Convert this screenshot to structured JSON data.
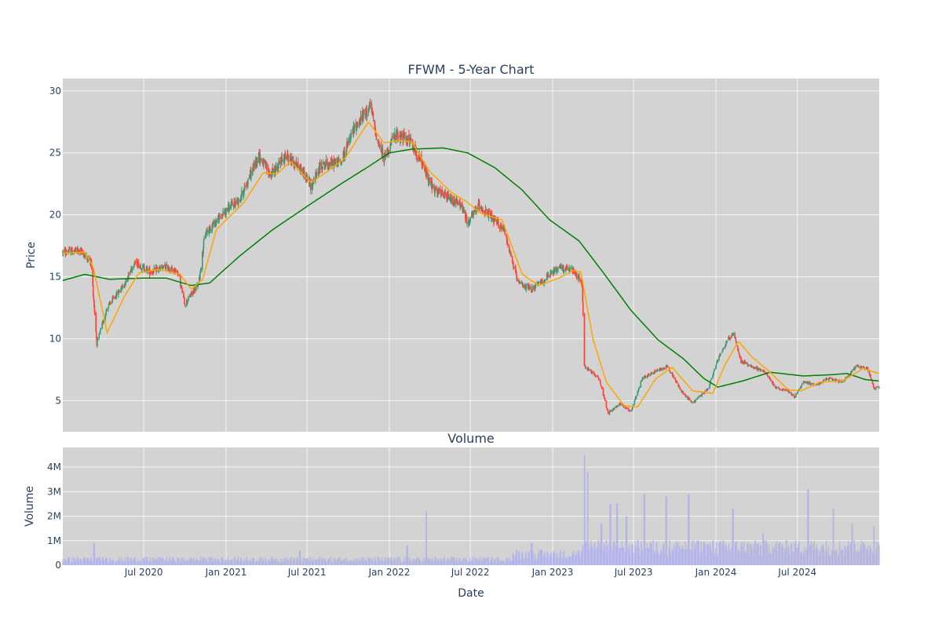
{
  "chart_data": [
    {
      "type": "candlestick",
      "title": "FFWM - 5-Year Chart",
      "xlabel": "",
      "ylabel": "Price",
      "ylim": [
        2.5,
        31
      ],
      "x_ticks": [
        "Jul 2020",
        "Jan 2021",
        "Jul 2021",
        "Jan 2022",
        "Jul 2022",
        "Jan 2023",
        "Jul 2023",
        "Jan 2024",
        "Jul 2024"
      ],
      "y_ticks": [
        5,
        10,
        15,
        20,
        25,
        30
      ],
      "grid": true,
      "background": "#d3d3d3",
      "colors": {
        "up": "#3d9970",
        "down": "#ff4136",
        "ma_short": "#ffa500",
        "ma_long": "#008000"
      },
      "x_range": [
        "2020-01-02",
        "2024-12-31"
      ],
      "price_path": [
        [
          "2020-01-02",
          17.0
        ],
        [
          "2020-02-10",
          17.1
        ],
        [
          "2020-03-05",
          16.2
        ],
        [
          "2020-03-18",
          9.6
        ],
        [
          "2020-04-10",
          12.5
        ],
        [
          "2020-05-20",
          14.5
        ],
        [
          "2020-06-10",
          16.2
        ],
        [
          "2020-07-15",
          15.4
        ],
        [
          "2020-08-20",
          15.8
        ],
        [
          "2020-09-15",
          15.4
        ],
        [
          "2020-10-01",
          12.8
        ],
        [
          "2020-11-01",
          14.5
        ],
        [
          "2020-11-15",
          18.5
        ],
        [
          "2021-01-05",
          20.5
        ],
        [
          "2021-02-01",
          21.3
        ],
        [
          "2021-03-15",
          24.8
        ],
        [
          "2021-04-10",
          23.2
        ],
        [
          "2021-05-15",
          24.8
        ],
        [
          "2021-06-20",
          23.6
        ],
        [
          "2021-07-10",
          22.3
        ],
        [
          "2021-08-01",
          24.0
        ],
        [
          "2021-09-15",
          24.3
        ],
        [
          "2021-10-15",
          27.0
        ],
        [
          "2021-11-20",
          28.8
        ],
        [
          "2021-12-05",
          26.0
        ],
        [
          "2021-12-20",
          24.6
        ],
        [
          "2022-01-15",
          26.5
        ],
        [
          "2022-02-15",
          26.0
        ],
        [
          "2022-03-10",
          24.5
        ],
        [
          "2022-04-10",
          22.0
        ],
        [
          "2022-05-15",
          21.3
        ],
        [
          "2022-06-10",
          20.8
        ],
        [
          "2022-06-25",
          19.3
        ],
        [
          "2022-07-20",
          20.8
        ],
        [
          "2022-08-15",
          19.8
        ],
        [
          "2022-09-15",
          18.8
        ],
        [
          "2022-10-15",
          14.5
        ],
        [
          "2022-11-15",
          14.0
        ],
        [
          "2022-12-15",
          14.8
        ],
        [
          "2023-01-15",
          15.8
        ],
        [
          "2023-02-15",
          15.5
        ],
        [
          "2023-03-08",
          14.5
        ],
        [
          "2023-03-13",
          7.8
        ],
        [
          "2023-04-15",
          6.8
        ],
        [
          "2023-05-05",
          4.0
        ],
        [
          "2023-06-01",
          4.8
        ],
        [
          "2023-06-25",
          4.1
        ],
        [
          "2023-07-20",
          6.8
        ],
        [
          "2023-08-20",
          7.4
        ],
        [
          "2023-09-15",
          7.8
        ],
        [
          "2023-10-15",
          5.8
        ],
        [
          "2023-11-10",
          4.8
        ],
        [
          "2023-12-15",
          6.0
        ],
        [
          "2024-01-05",
          8.3
        ],
        [
          "2024-01-25",
          9.8
        ],
        [
          "2024-02-10",
          10.5
        ],
        [
          "2024-02-25",
          8.2
        ],
        [
          "2024-03-20",
          7.8
        ],
        [
          "2024-04-20",
          7.3
        ],
        [
          "2024-05-15",
          6.0
        ],
        [
          "2024-06-10",
          5.8
        ],
        [
          "2024-06-25",
          5.3
        ],
        [
          "2024-07-15",
          6.5
        ],
        [
          "2024-08-10",
          6.3
        ],
        [
          "2024-09-10",
          6.8
        ],
        [
          "2024-10-10",
          6.5
        ],
        [
          "2024-11-10",
          7.8
        ],
        [
          "2024-12-05",
          7.6
        ],
        [
          "2024-12-20",
          6.0
        ],
        [
          "2024-12-31",
          6.1
        ]
      ],
      "ma_short_path": [
        [
          "2020-01-02",
          16.9
        ],
        [
          "2020-02-20",
          17.0
        ],
        [
          "2020-03-10",
          15.8
        ],
        [
          "2020-04-10",
          10.5
        ],
        [
          "2020-05-20",
          13.5
        ],
        [
          "2020-06-20",
          15.3
        ],
        [
          "2020-08-01",
          15.6
        ],
        [
          "2020-09-20",
          15.2
        ],
        [
          "2020-10-15",
          14.0
        ],
        [
          "2020-11-10",
          14.8
        ],
        [
          "2020-12-10",
          18.8
        ],
        [
          "2021-02-10",
          21.0
        ],
        [
          "2021-03-25",
          23.4
        ],
        [
          "2021-04-25",
          23.3
        ],
        [
          "2021-05-25",
          24.3
        ],
        [
          "2021-07-10",
          22.6
        ],
        [
          "2021-08-15",
          23.5
        ],
        [
          "2021-09-25",
          24.6
        ],
        [
          "2021-11-15",
          27.5
        ],
        [
          "2021-12-20",
          25.8
        ],
        [
          "2022-01-20",
          26.0
        ],
        [
          "2022-02-20",
          25.9
        ],
        [
          "2022-04-01",
          23.5
        ],
        [
          "2022-05-20",
          21.8
        ],
        [
          "2022-06-25",
          21.0
        ],
        [
          "2022-07-25",
          20.1
        ],
        [
          "2022-09-10",
          19.6
        ],
        [
          "2022-10-25",
          15.2
        ],
        [
          "2022-12-01",
          14.3
        ],
        [
          "2023-01-15",
          14.9
        ],
        [
          "2023-02-15",
          15.5
        ],
        [
          "2023-03-05",
          15.4
        ],
        [
          "2023-04-01",
          10.0
        ],
        [
          "2023-05-01",
          6.5
        ],
        [
          "2023-06-10",
          4.6
        ],
        [
          "2023-07-10",
          4.5
        ],
        [
          "2023-08-20",
          6.8
        ],
        [
          "2023-09-25",
          7.7
        ],
        [
          "2023-11-10",
          5.8
        ],
        [
          "2023-12-25",
          5.6
        ],
        [
          "2024-01-20",
          7.8
        ],
        [
          "2024-02-20",
          9.8
        ],
        [
          "2024-03-20",
          8.6
        ],
        [
          "2024-05-01",
          7.3
        ],
        [
          "2024-06-10",
          5.9
        ],
        [
          "2024-07-10",
          5.8
        ],
        [
          "2024-08-20",
          6.5
        ],
        [
          "2024-10-10",
          6.6
        ],
        [
          "2024-11-25",
          7.6
        ],
        [
          "2024-12-31",
          7.2
        ]
      ],
      "ma_long_path": [
        [
          "2020-01-02",
          14.7
        ],
        [
          "2020-02-20",
          15.2
        ],
        [
          "2020-04-15",
          14.8
        ],
        [
          "2020-07-01",
          14.9
        ],
        [
          "2020-08-20",
          14.9
        ],
        [
          "2020-10-15",
          14.3
        ],
        [
          "2020-11-25",
          14.5
        ],
        [
          "2021-02-01",
          16.7
        ],
        [
          "2021-04-15",
          18.8
        ],
        [
          "2021-07-10",
          20.9
        ],
        [
          "2021-09-15",
          22.5
        ],
        [
          "2021-11-20",
          24.0
        ],
        [
          "2022-01-01",
          25.0
        ],
        [
          "2022-02-20",
          25.3
        ],
        [
          "2022-05-01",
          25.4
        ],
        [
          "2022-06-25",
          25.0
        ],
        [
          "2022-08-25",
          23.8
        ],
        [
          "2022-10-25",
          22.0
        ],
        [
          "2022-12-25",
          19.6
        ],
        [
          "2023-03-01",
          17.9
        ],
        [
          "2023-04-25",
          15.3
        ],
        [
          "2023-06-25",
          12.3
        ],
        [
          "2023-08-25",
          9.9
        ],
        [
          "2023-10-20",
          8.4
        ],
        [
          "2023-12-05",
          6.8
        ],
        [
          "2024-01-05",
          6.1
        ],
        [
          "2024-03-01",
          6.6
        ],
        [
          "2024-05-01",
          7.3
        ],
        [
          "2024-07-15",
          7.0
        ],
        [
          "2024-09-15",
          7.1
        ],
        [
          "2024-10-20",
          7.2
        ],
        [
          "2024-12-01",
          6.7
        ],
        [
          "2024-12-31",
          6.6
        ]
      ]
    },
    {
      "type": "bar",
      "title": "Volume",
      "xlabel": "Date",
      "ylabel": "Volume",
      "ylim": [
        0,
        4800000
      ],
      "x_ticks": [
        "Jul 2020",
        "Jan 2021",
        "Jul 2021",
        "Jan 2022",
        "Jul 2022",
        "Jan 2023",
        "Jul 2023",
        "Jan 2024",
        "Jul 2024"
      ],
      "y_ticks": [
        "0",
        "1M",
        "2M",
        "3M",
        "4M"
      ],
      "y_tick_values": [
        0,
        1000000,
        2000000,
        3000000,
        4000000
      ],
      "bar_color": "#b4b4e6",
      "spikes": [
        [
          "2020-03-12",
          900000
        ],
        [
          "2021-06-15",
          600000
        ],
        [
          "2022-02-10",
          800000
        ],
        [
          "2022-03-25",
          2200000
        ],
        [
          "2022-11-15",
          900000
        ],
        [
          "2023-03-13",
          4500000
        ],
        [
          "2023-03-20",
          3800000
        ],
        [
          "2023-04-20",
          1700000
        ],
        [
          "2023-05-10",
          2500000
        ],
        [
          "2023-05-25",
          2500000
        ],
        [
          "2023-06-15",
          2000000
        ],
        [
          "2023-07-25",
          2900000
        ],
        [
          "2023-09-12",
          2800000
        ],
        [
          "2023-11-01",
          2900000
        ],
        [
          "2024-02-08",
          2300000
        ],
        [
          "2024-04-15",
          1300000
        ],
        [
          "2024-07-25",
          3100000
        ],
        [
          "2024-09-20",
          2300000
        ],
        [
          "2024-11-01",
          1700000
        ],
        [
          "2024-12-20",
          1600000
        ]
      ]
    }
  ]
}
